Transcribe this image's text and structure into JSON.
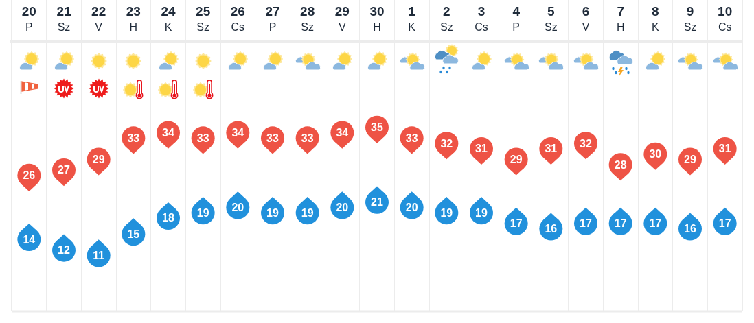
{
  "chart_data": {
    "type": "scatter",
    "categories": [
      "20\nP",
      "21\nSz",
      "22\nV",
      "23\nH",
      "24\nK",
      "25\nSz",
      "26\nCs",
      "27\nP",
      "28\nSz",
      "29\nV",
      "30\nH",
      "1\nK",
      "2\nSz",
      "3\nCs",
      "4\nP",
      "5\nSz",
      "6\nV",
      "7\nH",
      "8\nK",
      "9\nSz",
      "10\nCs"
    ],
    "series": [
      {
        "color": "#ee5345",
        "values": [
          26,
          27,
          29,
          33,
          34,
          33,
          34,
          33,
          33,
          34,
          35,
          33,
          32,
          31,
          29,
          31,
          32,
          28,
          30,
          29,
          31
        ]
      },
      {
        "color": "#2191dc",
        "values": [
          14,
          12,
          11,
          15,
          18,
          19,
          20,
          19,
          19,
          20,
          21,
          20,
          19,
          19,
          17,
          16,
          17,
          17,
          17,
          16,
          17
        ]
      }
    ],
    "data_labels": true,
    "grid": "x",
    "tick_labels": "x",
    "marker": "circle"
  }
}
